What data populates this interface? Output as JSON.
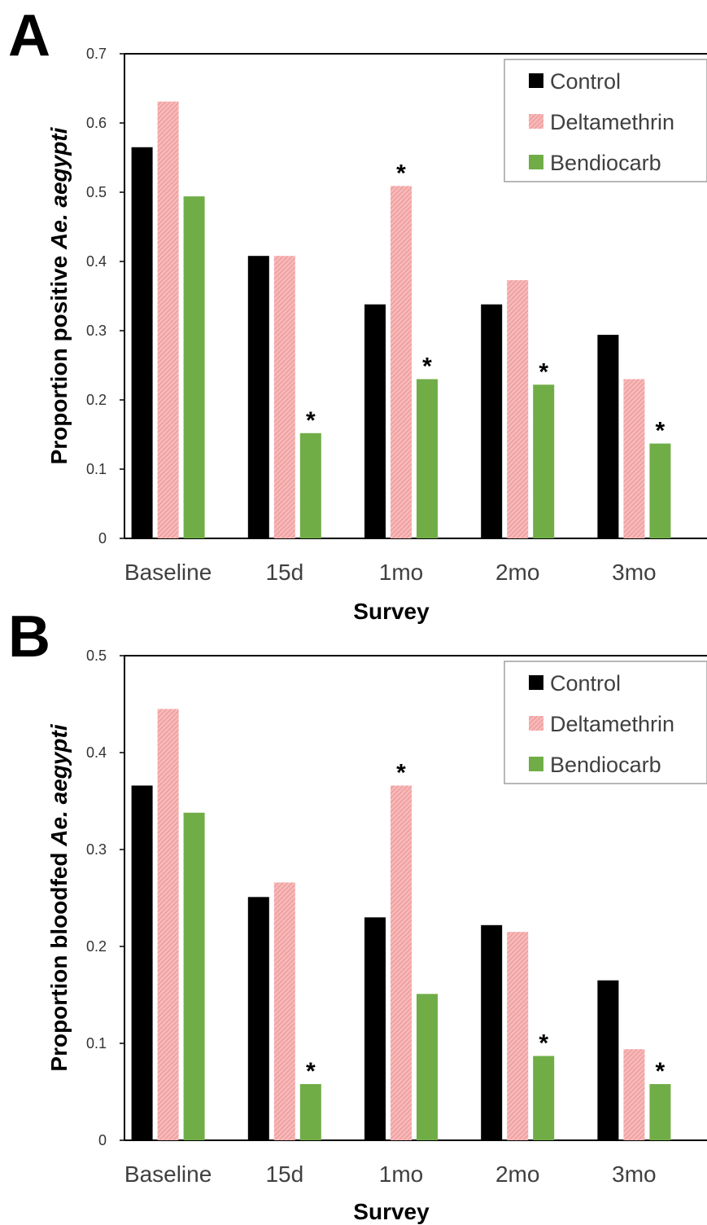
{
  "chart_data": [
    {
      "panel": "A",
      "type": "bar",
      "categories": [
        "Baseline",
        "15d",
        "1mo",
        "2mo",
        "3mo"
      ],
      "series": [
        {
          "name": "Control",
          "values": [
            0.565,
            0.408,
            0.338,
            0.338,
            0.294
          ]
        },
        {
          "name": "Deltamethrin",
          "values": [
            0.631,
            0.408,
            0.509,
            0.373,
            0.23
          ]
        },
        {
          "name": "Bendiocarb",
          "values": [
            0.494,
            0.152,
            0.23,
            0.222,
            0.137
          ]
        }
      ],
      "significant": [
        [],
        [],
        [],
        [],
        [],
        [],
        [],
        [
          1,
          2,
          3,
          4
        ]
      ],
      "markers": [
        {
          "series": 2,
          "category": 1,
          "label": "*"
        },
        {
          "series": 1,
          "category": 2,
          "label": "*"
        },
        {
          "series": 2,
          "category": 2,
          "label": "*"
        },
        {
          "series": 2,
          "category": 3,
          "label": "*"
        },
        {
          "series": 2,
          "category": 4,
          "label": "*"
        }
      ],
      "xlabel": "Survey",
      "ylabel_prefix": "Proportion positive",
      "ylabel_species": "Ae. aegypti",
      "ylim": [
        0,
        0.7
      ],
      "yticks": [
        "0",
        "0.1",
        "0.2",
        "0.3",
        "0.4",
        "0.5",
        "0.6",
        "0.7"
      ],
      "ytick_values": [
        0,
        0.1,
        0.2,
        0.3,
        0.4,
        0.5,
        0.6,
        0.7
      ],
      "legend_position": "top-right",
      "grid": false
    },
    {
      "panel": "B",
      "type": "bar",
      "categories": [
        "Baseline",
        "15d",
        "1mo",
        "2mo",
        "3mo"
      ],
      "series": [
        {
          "name": "Control",
          "values": [
            0.366,
            0.251,
            0.23,
            0.222,
            0.165
          ]
        },
        {
          "name": "Deltamethrin",
          "values": [
            0.445,
            0.266,
            0.366,
            0.215,
            0.094
          ]
        },
        {
          "name": "Bendiocarb",
          "values": [
            0.338,
            0.058,
            0.151,
            0.087,
            0.058
          ]
        }
      ],
      "markers": [
        {
          "series": 2,
          "category": 1,
          "label": "*"
        },
        {
          "series": 1,
          "category": 2,
          "label": "*"
        },
        {
          "series": 2,
          "category": 3,
          "label": "*"
        },
        {
          "series": 2,
          "category": 4,
          "label": "*"
        }
      ],
      "xlabel": "Survey",
      "ylabel_prefix": "Proportion bloodfed",
      "ylabel_species": "Ae. aegypti",
      "ylim": [
        0,
        0.5
      ],
      "yticks": [
        "0",
        "0.1",
        "0.2",
        "0.3",
        "0.4",
        "0.5"
      ],
      "ytick_values": [
        0,
        0.1,
        0.2,
        0.3,
        0.4,
        0.5
      ],
      "legend_position": "top-right",
      "grid": false
    }
  ],
  "colors": {
    "Control": "#000000",
    "Deltamethrin": "#f4a3a3",
    "Bendiocarb": "#70ad47",
    "axis": "#000000",
    "legend_border": "#a0a0a0"
  }
}
